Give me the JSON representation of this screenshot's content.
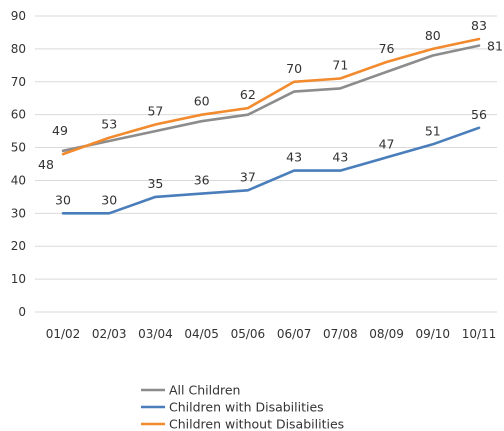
{
  "chart_data": {
    "type": "line",
    "categories": [
      "01/02",
      "02/03",
      "03/04",
      "04/05",
      "05/06",
      "06/07",
      "07/08",
      "08/09",
      "09/10",
      "10/11"
    ],
    "ylim": [
      0,
      90
    ],
    "y_ticks": [
      "0",
      "10",
      "20",
      "30",
      "40",
      "50",
      "60",
      "70",
      "80",
      "90"
    ],
    "grid": true,
    "legend_position": "bottom",
    "series": [
      {
        "name": "All Children",
        "color": "#8c8c8c",
        "values": [
          49,
          52,
          55,
          58,
          60,
          67,
          68,
          73,
          78,
          81
        ],
        "labels": [
          "",
          "",
          "",
          "",
          "",
          "",
          "",
          "",
          "",
          "81"
        ]
      },
      {
        "name": "Children with Disabilities",
        "color": "#4a7ebb",
        "values": [
          30,
          30,
          35,
          36,
          37,
          43,
          43,
          47,
          51,
          56
        ],
        "labels": [
          "30",
          "30",
          "35",
          "36",
          "37",
          "43",
          "43",
          "47",
          "51",
          "56"
        ]
      },
      {
        "name": "Children without Disabilities",
        "color": "#f28a2e",
        "values": [
          48,
          53,
          57,
          60,
          62,
          70,
          71,
          76,
          80,
          83
        ],
        "labels": [
          "48",
          "53",
          "57",
          "60",
          "62",
          "70",
          "71",
          "76",
          "80",
          "83"
        ]
      }
    ],
    "extra_labels": [
      {
        "series": 0,
        "index": 0,
        "text": "49"
      }
    ]
  }
}
